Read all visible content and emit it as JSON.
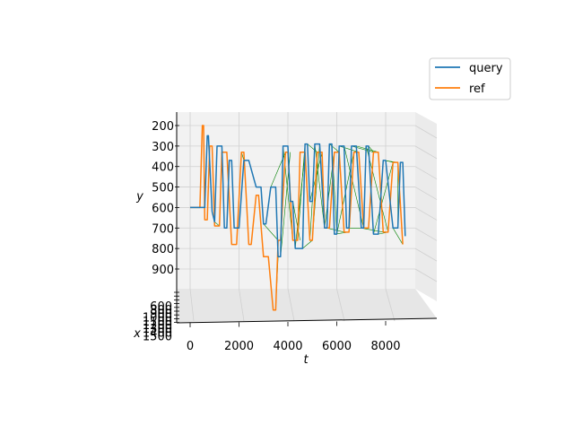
{
  "chart_data": {
    "type": "line",
    "projection": "3d",
    "xlabel": "t",
    "ylabel": "y",
    "zlabel": "x",
    "t_ticks": [
      0,
      2000,
      4000,
      6000,
      8000
    ],
    "t_tick_labels": [
      "0",
      "2000",
      "4000",
      "6000",
      "8000"
    ],
    "y_ticks": [
      200,
      300,
      400,
      500,
      600,
      700,
      800,
      900
    ],
    "y_tick_labels": [
      "200",
      "300",
      "400",
      "500",
      "600",
      "700",
      "800",
      "900"
    ],
    "y_inverted": true,
    "x_ticks": [
      600,
      800,
      900,
      1000,
      1100,
      1200,
      1300,
      1400,
      1500
    ],
    "x_tick_labels": [
      "600",
      "800",
      "900",
      "1000",
      "1100",
      "1200",
      "1300",
      "1400",
      "1500"
    ],
    "grid": true,
    "legend_position": "top-right",
    "colors": {
      "query": "#1f77b4",
      "ref": "#ff7f0e",
      "alignment": "#008000",
      "pane": "#f2f2f2",
      "grid": "#d0d0d0"
    },
    "series": [
      {
        "name": "query",
        "t": [
          0,
          500,
          600,
          700,
          750,
          900,
          1000,
          1100,
          1300,
          1400,
          1500,
          1600,
          1700,
          1800,
          2000,
          2200,
          2400,
          2700,
          2900,
          3000,
          3100,
          3300,
          3500,
          3600,
          3700,
          3800,
          4000,
          4100,
          4200,
          4300,
          4600,
          4700,
          4800,
          4900,
          5000,
          5100,
          5300,
          5500,
          5600,
          5700,
          5800,
          5900,
          6000,
          6100,
          6300,
          6400,
          6500,
          6600,
          6800,
          7000,
          7100,
          7200,
          7300,
          7500,
          7700,
          7900,
          8000,
          8300,
          8500,
          8600,
          8700,
          8800
        ],
        "y": [
          600,
          600,
          600,
          250,
          250,
          620,
          670,
          300,
          300,
          700,
          700,
          370,
          370,
          700,
          700,
          370,
          370,
          500,
          500,
          680,
          680,
          500,
          500,
          840,
          840,
          300,
          300,
          570,
          570,
          800,
          800,
          290,
          290,
          570,
          570,
          290,
          290,
          700,
          700,
          290,
          290,
          730,
          730,
          300,
          300,
          700,
          700,
          300,
          300,
          700,
          700,
          300,
          300,
          730,
          730,
          370,
          370,
          700,
          700,
          380,
          380,
          740
        ]
      },
      {
        "name": "ref",
        "t": [
          0,
          400,
          500,
          550,
          600,
          700,
          800,
          900,
          1000,
          1200,
          1300,
          1500,
          1700,
          1900,
          2100,
          2200,
          2400,
          2500,
          2700,
          2800,
          3000,
          3200,
          3400,
          3500,
          3600,
          3700,
          3900,
          4000,
          4200,
          4400,
          4500,
          4700,
          4900,
          5000,
          5200,
          5400,
          5500,
          5700,
          5900,
          6100,
          6300,
          6500,
          6700,
          6900,
          7100,
          7300,
          7500,
          7700,
          7900,
          8100,
          8300,
          8500,
          8700
        ],
        "y": [
          600,
          600,
          200,
          200,
          660,
          660,
          300,
          300,
          690,
          690,
          330,
          330,
          780,
          780,
          330,
          330,
          780,
          780,
          540,
          540,
          840,
          840,
          1100,
          1100,
          760,
          760,
          330,
          330,
          760,
          760,
          330,
          330,
          760,
          760,
          330,
          330,
          700,
          700,
          330,
          330,
          720,
          720,
          330,
          330,
          700,
          700,
          330,
          330,
          720,
          720,
          380,
          380,
          780
        ]
      }
    ],
    "alignment_links": [
      [
        600,
        600,
        600,
        600
      ],
      [
        1000,
        670,
        1200,
        690
      ],
      [
        2200,
        370,
        2100,
        330
      ],
      [
        3000,
        680,
        3600,
        760
      ],
      [
        3300,
        500,
        3900,
        330
      ],
      [
        3600,
        840,
        3500,
        1100
      ],
      [
        3800,
        300,
        4200,
        760
      ],
      [
        4100,
        570,
        4000,
        330
      ],
      [
        4300,
        800,
        4700,
        330
      ],
      [
        4600,
        800,
        5000,
        760
      ],
      [
        4700,
        290,
        4400,
        760
      ],
      [
        4900,
        570,
        5400,
        330
      ],
      [
        5000,
        570,
        4900,
        760
      ],
      [
        5100,
        290,
        5500,
        700
      ],
      [
        5300,
        290,
        5000,
        760
      ],
      [
        5500,
        700,
        5900,
        330
      ],
      [
        5600,
        700,
        6300,
        720
      ],
      [
        5700,
        290,
        6100,
        330
      ],
      [
        5900,
        730,
        6500,
        720
      ],
      [
        6000,
        730,
        6700,
        330
      ],
      [
        6100,
        300,
        6900,
        330
      ],
      [
        6300,
        300,
        7100,
        700
      ],
      [
        6400,
        700,
        7300,
        700
      ],
      [
        6500,
        700,
        6700,
        330
      ],
      [
        6600,
        300,
        7500,
        330
      ],
      [
        6800,
        300,
        7700,
        330
      ],
      [
        7000,
        700,
        7900,
        720
      ],
      [
        7100,
        700,
        7300,
        700
      ],
      [
        7200,
        300,
        8100,
        720
      ],
      [
        7300,
        300,
        7500,
        330
      ],
      [
        7500,
        730,
        8300,
        380
      ],
      [
        7700,
        730,
        8100,
        720
      ],
      [
        7900,
        370,
        8500,
        380
      ],
      [
        8000,
        370,
        8300,
        380
      ],
      [
        8300,
        700,
        8700,
        780
      ],
      [
        8500,
        700,
        8500,
        380
      ],
      [
        4200,
        570,
        4500,
        760
      ],
      [
        4800,
        290,
        5200,
        330
      ],
      [
        3700,
        840,
        4100,
        330
      ],
      [
        5800,
        290,
        6000,
        720
      ]
    ]
  }
}
